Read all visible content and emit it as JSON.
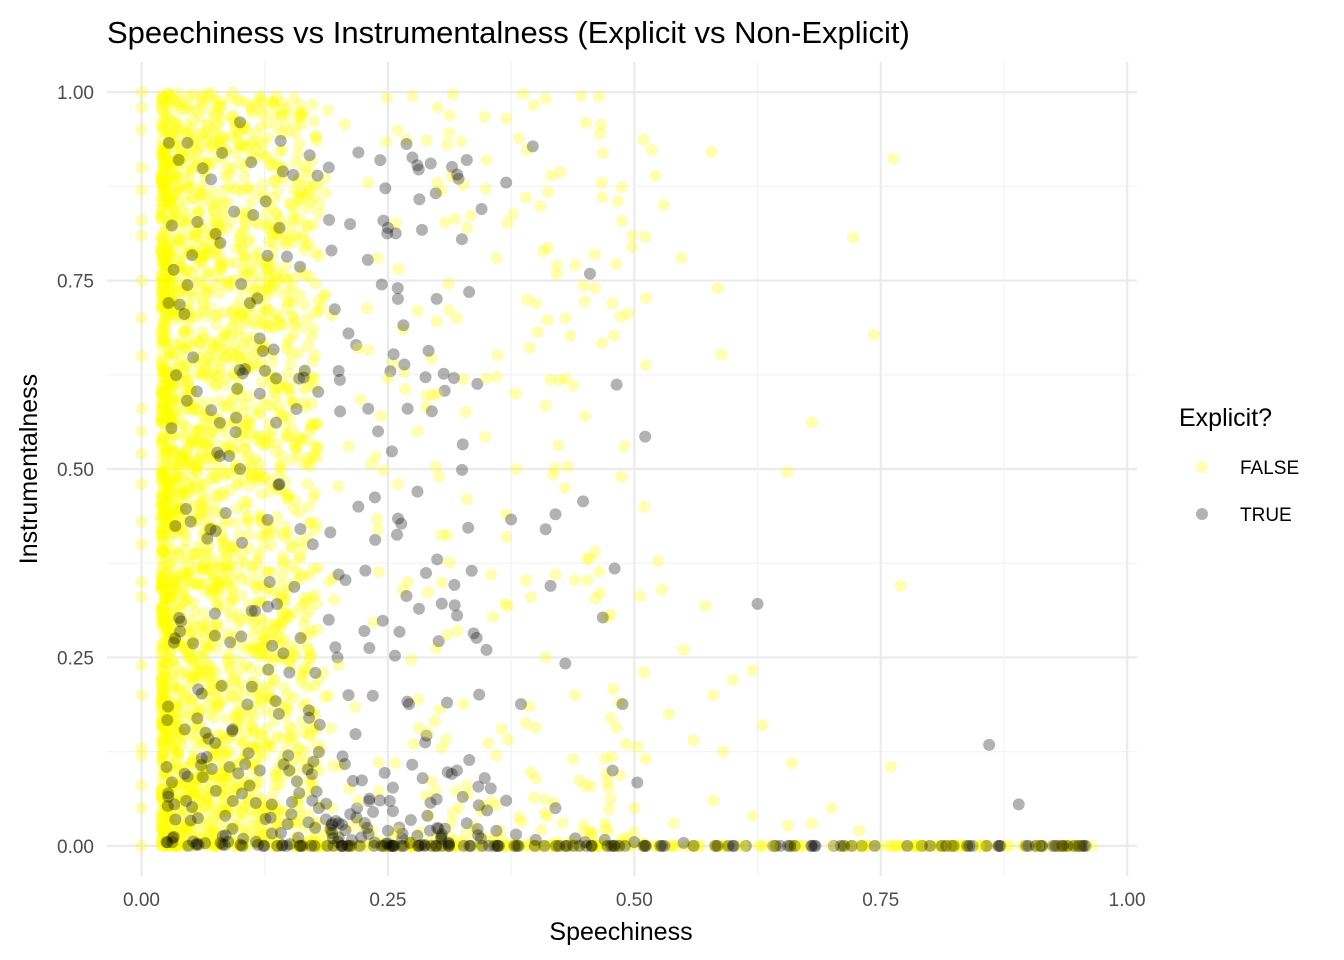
{
  "chart_data": {
    "type": "scatter",
    "title": "Speechiness vs Instrumentalness (Explicit vs Non-Explicit)",
    "xlabel": "Speechiness",
    "ylabel": "Instrumentalness",
    "xlim": [
      -0.035,
      1.01
    ],
    "ylim": [
      -0.04,
      1.04
    ],
    "x_ticks": [
      "0.00",
      "0.25",
      "0.50",
      "0.75",
      "1.00"
    ],
    "y_ticks": [
      "0.00",
      "0.25",
      "0.50",
      "0.75",
      "1.00"
    ],
    "grid": true,
    "legend": {
      "title": "Explicit?",
      "placement": "right",
      "entries": [
        {
          "label": "FALSE",
          "color": "#FFFF00"
        },
        {
          "label": "TRUE",
          "color": "#000000"
        }
      ]
    },
    "point_opacity": 0.3,
    "series": [
      {
        "name": "FALSE",
        "color": "#FFFF00",
        "points": [
          [
            0.0,
            1.0
          ],
          [
            0.0,
            0.98
          ],
          [
            0.0,
            0.95
          ],
          [
            0.0,
            0.9
          ],
          [
            0.0,
            0.87
          ],
          [
            0.0,
            0.83
          ],
          [
            0.0,
            0.81
          ],
          [
            0.0,
            0.75
          ],
          [
            0.0,
            0.7
          ],
          [
            0.0,
            0.65
          ],
          [
            0.0,
            0.58
          ],
          [
            0.0,
            0.55
          ],
          [
            0.0,
            0.52
          ],
          [
            0.0,
            0.48
          ],
          [
            0.0,
            0.43
          ],
          [
            0.0,
            0.4
          ],
          [
            0.0,
            0.35
          ],
          [
            0.0,
            0.33
          ],
          [
            0.0,
            0.24
          ],
          [
            0.0,
            0.2
          ],
          [
            0.0,
            0.13
          ],
          [
            0.0,
            0.12
          ],
          [
            0.0,
            0.08
          ],
          [
            0.0,
            0.05
          ],
          [
            0.0,
            0.0
          ],
          [
            0.578,
            0.921
          ],
          [
            0.763,
            0.912
          ],
          [
            0.722,
            0.807
          ],
          [
            0.743,
            0.678
          ],
          [
            0.68,
            0.562
          ],
          [
            0.655,
            0.496
          ],
          [
            0.77,
            0.345
          ],
          [
            0.588,
            0.652
          ],
          [
            0.585,
            0.74
          ],
          [
            0.62,
            0.233
          ],
          [
            0.76,
            0.105
          ],
          [
            0.59,
            0.125
          ],
          [
            0.656,
            0.027
          ],
          [
            0.728,
            0.02
          ],
          [
            0.509,
            0.937
          ],
          [
            0.446,
            0.995
          ],
          [
            0.425,
            0.894
          ],
          [
            0.398,
            0.983
          ],
          [
            0.316,
            0.997
          ],
          [
            0.275,
            0.995
          ],
          [
            0.37,
            0.965
          ],
          [
            0.483,
            0.855
          ],
          [
            0.465,
            0.945
          ],
          [
            0.521,
            0.889
          ],
          [
            0.53,
            0.85
          ],
          [
            0.548,
            0.78
          ],
          [
            0.498,
            0.81
          ],
          [
            0.467,
            0.667
          ],
          [
            0.51,
            0.45
          ],
          [
            0.524,
            0.378
          ],
          [
            0.528,
            0.34
          ],
          [
            0.55,
            0.26
          ],
          [
            0.572,
            0.318
          ],
          [
            0.58,
            0.2
          ],
          [
            0.535,
            0.175
          ],
          [
            0.485,
            0.19
          ],
          [
            0.44,
            0.2
          ],
          [
            0.41,
            0.25
          ],
          [
            0.395,
            0.33
          ],
          [
            0.42,
            0.36
          ],
          [
            0.37,
            0.44
          ],
          [
            0.38,
            0.5
          ],
          [
            0.35,
            0.62
          ],
          [
            0.32,
            0.7
          ],
          [
            0.3,
            0.6
          ],
          [
            0.28,
            0.55
          ],
          [
            0.26,
            0.48
          ],
          [
            0.33,
            0.46
          ],
          [
            0.37,
            0.41
          ],
          [
            0.36,
            0.12
          ],
          [
            0.4,
            0.09
          ],
          [
            0.45,
            0.08
          ],
          [
            0.5,
            0.05
          ],
          [
            0.54,
            0.03
          ],
          [
            0.58,
            0.06
          ],
          [
            0.62,
            0.04
          ],
          [
            0.47,
            0.03
          ],
          [
            0.33,
            0.08
          ],
          [
            0.29,
            0.15
          ],
          [
            0.31,
            0.28
          ],
          [
            0.27,
            0.35
          ],
          [
            0.24,
            0.42
          ],
          [
            0.22,
            0.66
          ],
          [
            0.24,
            0.78
          ],
          [
            0.23,
            0.88
          ],
          [
            0.26,
            0.95
          ],
          [
            0.3,
            0.88
          ],
          [
            0.33,
            0.82
          ],
          [
            0.36,
            0.78
          ],
          [
            0.4,
            0.72
          ],
          [
            0.43,
            0.7
          ],
          [
            0.46,
            0.74
          ],
          [
            0.39,
            0.86
          ],
          [
            0.35,
            0.91
          ],
          [
            0.31,
            0.93
          ],
          [
            0.28,
            0.71
          ],
          [
            0.25,
            0.62
          ],
          [
            0.21,
            0.53
          ],
          [
            0.19,
            0.35
          ],
          [
            0.2,
            0.24
          ],
          [
            0.18,
            0.1
          ],
          [
            0.22,
            0.06
          ],
          [
            0.26,
            0.02
          ],
          [
            0.43,
            0.62
          ],
          [
            0.45,
            0.57
          ],
          [
            0.49,
            0.53
          ],
          [
            0.46,
            0.39
          ],
          [
            0.51,
            0.23
          ],
          [
            0.56,
            0.14
          ],
          [
            0.6,
            0.22
          ],
          [
            0.63,
            0.16
          ],
          [
            0.66,
            0.11
          ],
          [
            0.68,
            0.03
          ],
          [
            0.7,
            0.05
          ]
        ],
        "baseline_points": [
          [
            0.61,
            0.0
          ],
          [
            0.64,
            0.0
          ],
          [
            0.67,
            0.0
          ],
          [
            0.7,
            0.0
          ],
          [
            0.73,
            0.0
          ],
          [
            0.76,
            0.0
          ],
          [
            0.79,
            0.0
          ],
          [
            0.82,
            0.0
          ],
          [
            0.85,
            0.0
          ],
          [
            0.88,
            0.0
          ],
          [
            0.91,
            0.0
          ],
          [
            0.93,
            0.0
          ],
          [
            0.95,
            0.0
          ],
          [
            0.965,
            0.0
          ]
        ]
      },
      {
        "name": "TRUE",
        "color": "#000000",
        "points": [
          [
            0.397,
            0.928
          ],
          [
            0.455,
            0.759
          ],
          [
            0.482,
            0.612
          ],
          [
            0.511,
            0.543
          ],
          [
            0.448,
            0.457
          ],
          [
            0.48,
            0.368
          ],
          [
            0.468,
            0.303
          ],
          [
            0.625,
            0.321
          ],
          [
            0.86,
            0.134
          ],
          [
            0.89,
            0.055
          ],
          [
            0.42,
            0.44
          ],
          [
            0.41,
            0.42
          ],
          [
            0.415,
            0.345
          ],
          [
            0.375,
            0.433
          ],
          [
            0.37,
            0.88
          ],
          [
            0.345,
            0.845
          ],
          [
            0.335,
            0.365
          ],
          [
            0.34,
            0.276
          ],
          [
            0.43,
            0.242
          ],
          [
            0.488,
            0.188
          ],
          [
            0.385,
            0.188
          ],
          [
            0.478,
            0.1
          ],
          [
            0.503,
            0.084
          ],
          [
            0.42,
            0.05
          ],
          [
            0.37,
            0.06
          ],
          [
            0.32,
            0.1
          ],
          [
            0.31,
            0.19
          ],
          [
            0.3,
            0.38
          ],
          [
            0.28,
            0.47
          ],
          [
            0.27,
            0.58
          ],
          [
            0.26,
            0.74
          ],
          [
            0.25,
            0.82
          ],
          [
            0.22,
            0.92
          ],
          [
            0.19,
            0.9
          ],
          [
            0.21,
            0.68
          ],
          [
            0.2,
            0.63
          ],
          [
            0.23,
            0.58
          ],
          [
            0.24,
            0.55
          ],
          [
            0.22,
            0.45
          ],
          [
            0.2,
            0.36
          ],
          [
            0.19,
            0.3
          ],
          [
            0.21,
            0.2
          ],
          [
            0.17,
            0.17
          ],
          [
            0.15,
            0.23
          ],
          [
            0.13,
            0.35
          ],
          [
            0.14,
            0.48
          ],
          [
            0.12,
            0.6
          ],
          [
            0.1,
            0.96
          ],
          [
            0.12,
            0.1
          ],
          [
            0.16,
            0.07
          ],
          [
            0.18,
            0.05
          ],
          [
            0.2,
            0.03
          ],
          [
            0.25,
            0.02
          ],
          [
            0.29,
            0.04
          ],
          [
            0.33,
            0.03
          ],
          [
            0.38,
            0.015
          ],
          [
            0.44,
            0.01
          ],
          [
            0.47,
            0.008
          ],
          [
            0.5,
            0.005
          ],
          [
            0.55,
            0.004
          ],
          [
            0.6,
            0.0
          ],
          [
            0.8,
            0.0
          ],
          [
            0.84,
            0.0
          ],
          [
            0.9,
            0.0
          ],
          [
            0.93,
            0.0
          ],
          [
            0.95,
            0.0
          ],
          [
            0.08,
            0.8
          ],
          [
            0.09,
            0.27
          ],
          [
            0.07,
            0.42
          ],
          [
            0.065,
            0.15
          ],
          [
            0.085,
            0.04
          ],
          [
            0.1,
            0.5
          ],
          [
            0.11,
            0.72
          ],
          [
            0.14,
            0.82
          ],
          [
            0.16,
            0.62
          ],
          [
            0.15,
            0.1
          ],
          [
            0.35,
            0.26
          ],
          [
            0.36,
            0.02
          ],
          [
            0.4,
            0.008
          ],
          [
            0.45,
            0.005
          ]
        ]
      }
    ]
  }
}
